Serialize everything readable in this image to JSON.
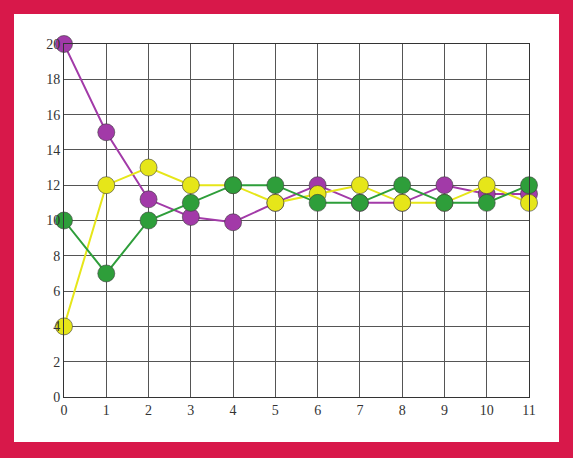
{
  "chart_data": {
    "type": "line",
    "x": [
      0,
      1,
      2,
      3,
      4,
      5,
      6,
      7,
      8,
      9,
      10,
      11
    ],
    "series": [
      {
        "color": "#a23aa8",
        "values": [
          20,
          15,
          11.2,
          10.2,
          9.9,
          11,
          12,
          11,
          11,
          12,
          11.5,
          11.5
        ]
      },
      {
        "color": "#e6e619",
        "values": [
          4,
          12,
          13,
          12,
          12,
          11,
          11.5,
          12,
          11,
          11,
          12,
          11
        ]
      },
      {
        "color": "#2e9e3a",
        "values": [
          10,
          7,
          10,
          11,
          12,
          12,
          11,
          11,
          12,
          11,
          11,
          12
        ]
      }
    ],
    "xlim": [
      0,
      11
    ],
    "xticks": [
      0,
      1,
      2,
      3,
      4,
      5,
      6,
      7,
      8,
      9,
      10,
      11
    ],
    "ylim": [
      0,
      20
    ],
    "yticks": [
      0,
      2,
      4,
      6,
      8,
      10,
      12,
      14,
      16,
      18,
      20
    ],
    "grid": true,
    "marker": "circle"
  }
}
